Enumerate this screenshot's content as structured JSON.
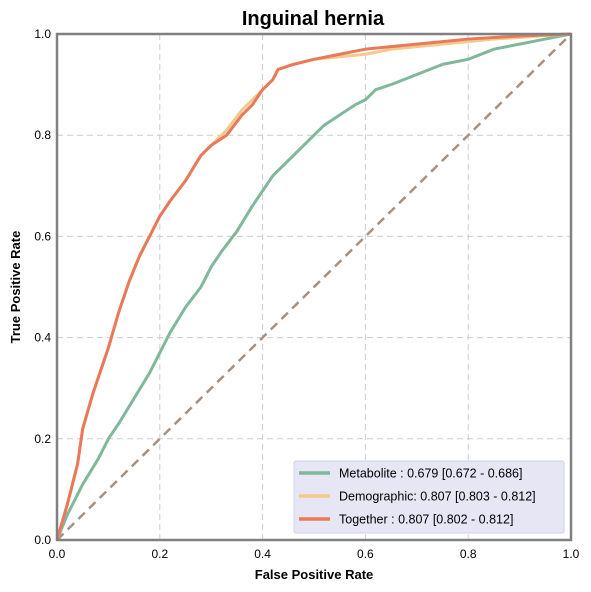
{
  "chart_data": {
    "type": "line",
    "title": "Inguinal hernia",
    "xlabel": "False Positive Rate",
    "ylabel": "True Positive Rate",
    "xlim": [
      0,
      1
    ],
    "ylim": [
      0,
      1
    ],
    "xticks": [
      "0.0",
      "0.2",
      "0.4",
      "0.6",
      "0.8",
      "1.0"
    ],
    "yticks": [
      "0.0",
      "0.2",
      "0.4",
      "0.6",
      "0.8",
      "1.0"
    ],
    "grid": true,
    "legend_position": "lower-right",
    "reference_line": {
      "x": [
        0,
        1
      ],
      "y": [
        0,
        1
      ],
      "color": "#a89080",
      "style": "dashed"
    },
    "series": [
      {
        "name": "Metabolite",
        "legend_label": "Metabolite     : 0.679 [0.672 - 0.686]",
        "color": "#7fb89a",
        "x": [
          0,
          0.02,
          0.05,
          0.08,
          0.1,
          0.12,
          0.15,
          0.18,
          0.2,
          0.22,
          0.25,
          0.28,
          0.3,
          0.32,
          0.35,
          0.38,
          0.4,
          0.42,
          0.45,
          0.48,
          0.5,
          0.52,
          0.55,
          0.58,
          0.6,
          0.62,
          0.65,
          0.7,
          0.75,
          0.8,
          0.85,
          0.9,
          0.95,
          1.0
        ],
        "y": [
          0,
          0.05,
          0.11,
          0.16,
          0.2,
          0.23,
          0.28,
          0.33,
          0.37,
          0.41,
          0.46,
          0.5,
          0.54,
          0.57,
          0.61,
          0.66,
          0.69,
          0.72,
          0.75,
          0.78,
          0.8,
          0.82,
          0.84,
          0.86,
          0.87,
          0.89,
          0.9,
          0.92,
          0.94,
          0.95,
          0.97,
          0.98,
          0.99,
          1.0
        ]
      },
      {
        "name": "Demographic",
        "legend_label": "Demographic: 0.807 [0.803 - 0.812]",
        "color": "#f5c98c",
        "x": [
          0,
          0.02,
          0.04,
          0.05,
          0.07,
          0.1,
          0.12,
          0.14,
          0.16,
          0.18,
          0.2,
          0.22,
          0.25,
          0.28,
          0.3,
          0.33,
          0.36,
          0.38,
          0.4,
          0.42,
          0.43,
          0.46,
          0.5,
          0.55,
          0.6,
          0.65,
          0.7,
          0.75,
          0.8,
          0.85,
          0.9,
          0.95,
          1.0
        ],
        "y": [
          0,
          0.07,
          0.15,
          0.22,
          0.29,
          0.38,
          0.45,
          0.51,
          0.56,
          0.6,
          0.64,
          0.67,
          0.71,
          0.76,
          0.78,
          0.81,
          0.85,
          0.87,
          0.89,
          0.91,
          0.93,
          0.94,
          0.95,
          0.955,
          0.96,
          0.97,
          0.975,
          0.98,
          0.985,
          0.99,
          0.993,
          0.997,
          1.0
        ]
      },
      {
        "name": "Together",
        "legend_label": "Together       : 0.807 [0.802 - 0.812]",
        "color": "#e8795a",
        "x": [
          0,
          0.02,
          0.04,
          0.05,
          0.07,
          0.1,
          0.12,
          0.14,
          0.16,
          0.18,
          0.2,
          0.22,
          0.25,
          0.28,
          0.3,
          0.33,
          0.36,
          0.38,
          0.4,
          0.42,
          0.43,
          0.46,
          0.5,
          0.55,
          0.6,
          0.65,
          0.7,
          0.75,
          0.8,
          0.85,
          0.9,
          0.95,
          1.0
        ],
        "y": [
          0,
          0.07,
          0.15,
          0.22,
          0.29,
          0.38,
          0.45,
          0.51,
          0.56,
          0.6,
          0.64,
          0.67,
          0.71,
          0.76,
          0.78,
          0.8,
          0.84,
          0.86,
          0.89,
          0.91,
          0.93,
          0.94,
          0.95,
          0.96,
          0.97,
          0.975,
          0.98,
          0.985,
          0.99,
          0.993,
          0.996,
          0.998,
          1.0
        ]
      }
    ]
  }
}
